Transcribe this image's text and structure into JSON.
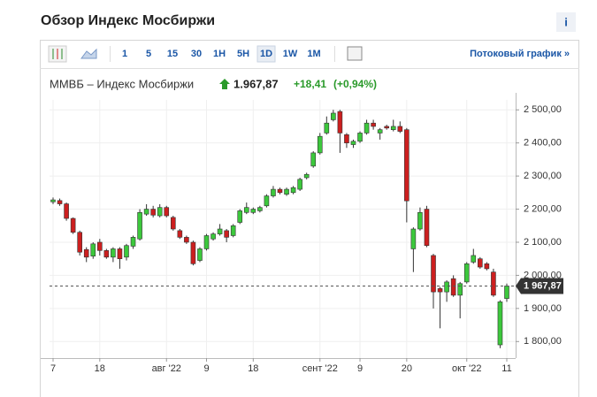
{
  "header": {
    "title": "Обзор Индекс Мосбиржи",
    "info": "i"
  },
  "toolbar": {
    "intervals": [
      "1",
      "5",
      "15",
      "30",
      "1H",
      "5H",
      "1D",
      "1W",
      "1M"
    ],
    "stream_link": "Потоковый график »"
  },
  "quote": {
    "name": "ММВБ – Индекс Мосбиржи",
    "price": "1.967,87",
    "change": "+18,41",
    "change_pct": "(+0,94%)"
  },
  "chart_data": {
    "type": "candlestick",
    "categories": [
      "7",
      null,
      null,
      null,
      null,
      null,
      null,
      "18",
      null,
      null,
      null,
      null,
      null,
      null,
      null,
      null,
      null,
      "авг '22",
      null,
      null,
      null,
      null,
      null,
      "9",
      null,
      null,
      null,
      null,
      null,
      null,
      "18",
      null,
      null,
      null,
      null,
      null,
      null,
      null,
      null,
      null,
      "сент '22",
      null,
      null,
      null,
      null,
      null,
      "9",
      null,
      null,
      null,
      null,
      null,
      null,
      "20",
      null,
      null,
      null,
      null,
      null,
      null,
      null,
      null,
      "окт '22",
      null,
      null,
      null,
      null,
      null,
      "11"
    ],
    "open": [
      2222,
      2226,
      2216,
      2172,
      2130,
      2078,
      2058,
      2100,
      2075,
      2055,
      2080,
      2055,
      2088,
      2110,
      2185,
      2200,
      2180,
      2205,
      2175,
      2135,
      2115,
      2100,
      2045,
      2080,
      2110,
      2125,
      2135,
      2120,
      2160,
      2190,
      2190,
      2195,
      2210,
      2240,
      2260,
      2245,
      2250,
      2260,
      2295,
      2330,
      2370,
      2430,
      2470,
      2495,
      2425,
      2395,
      2405,
      2430,
      2460,
      2430,
      2450,
      2440,
      2450,
      2440,
      2080,
      2140,
      2200,
      2060,
      1960,
      1950,
      1990,
      1940,
      1980,
      2040,
      2050,
      2035,
      2010,
      1790,
      1930
    ],
    "high": [
      2235,
      2232,
      2220,
      2175,
      2135,
      2085,
      2100,
      2110,
      2080,
      2085,
      2085,
      2095,
      2120,
      2200,
      2215,
      2210,
      2215,
      2210,
      2180,
      2140,
      2120,
      2105,
      2085,
      2125,
      2130,
      2155,
      2140,
      2155,
      2200,
      2220,
      2205,
      2210,
      2245,
      2270,
      2265,
      2265,
      2270,
      2295,
      2310,
      2375,
      2430,
      2480,
      2500,
      2500,
      2430,
      2410,
      2435,
      2470,
      2470,
      2445,
      2455,
      2470,
      2465,
      2445,
      2145,
      2205,
      2210,
      2065,
      1965,
      1985,
      2000,
      1980,
      2040,
      2080,
      2055,
      2040,
      2020,
      1925,
      1975
    ],
    "low": [
      2215,
      2210,
      2165,
      2125,
      2060,
      2040,
      2050,
      2060,
      2050,
      2040,
      2020,
      2045,
      2080,
      2105,
      2180,
      2175,
      2175,
      2175,
      2135,
      2110,
      2095,
      2030,
      2040,
      2075,
      2105,
      2120,
      2100,
      2115,
      2155,
      2185,
      2185,
      2190,
      2205,
      2235,
      2245,
      2240,
      2245,
      2255,
      2290,
      2325,
      2365,
      2425,
      2465,
      2370,
      2385,
      2385,
      2400,
      2425,
      2440,
      2410,
      2440,
      2435,
      2430,
      2160,
      2010,
      2135,
      2085,
      1900,
      1840,
      1920,
      1935,
      1870,
      1975,
      2035,
      2020,
      2015,
      1935,
      1780,
      1920
    ],
    "close": [
      2228,
      2216,
      2172,
      2130,
      2070,
      2055,
      2095,
      2075,
      2055,
      2080,
      2050,
      2090,
      2115,
      2190,
      2200,
      2182,
      2205,
      2180,
      2140,
      2115,
      2100,
      2035,
      2080,
      2120,
      2125,
      2140,
      2115,
      2150,
      2195,
      2205,
      2200,
      2205,
      2240,
      2260,
      2250,
      2260,
      2265,
      2290,
      2305,
      2370,
      2420,
      2460,
      2490,
      2430,
      2400,
      2405,
      2430,
      2460,
      2450,
      2440,
      2445,
      2450,
      2435,
      2225,
      2140,
      2190,
      2090,
      1950,
      1950,
      1980,
      1940,
      1975,
      2035,
      2060,
      2025,
      2020,
      1940,
      1920,
      1967.87
    ],
    "up_color": "#3cc83c",
    "down_color": "#cc1f1f",
    "ylim": [
      1750,
      2530
    ],
    "yticks": [
      {
        "value": 1800,
        "label": "1 800,00"
      },
      {
        "value": 1900,
        "label": "1 900,00"
      },
      {
        "value": 2000,
        "label": "2 000,00"
      },
      {
        "value": 2100,
        "label": "2 100,00"
      },
      {
        "value": 2200,
        "label": "2 200,00"
      },
      {
        "value": 2300,
        "label": "2 300,00"
      },
      {
        "value": 2400,
        "label": "2 400,00"
      },
      {
        "value": 2500,
        "label": "2 500,00"
      }
    ],
    "last": {
      "value": 1967.87,
      "label": "1 967,87"
    },
    "grid": true
  }
}
